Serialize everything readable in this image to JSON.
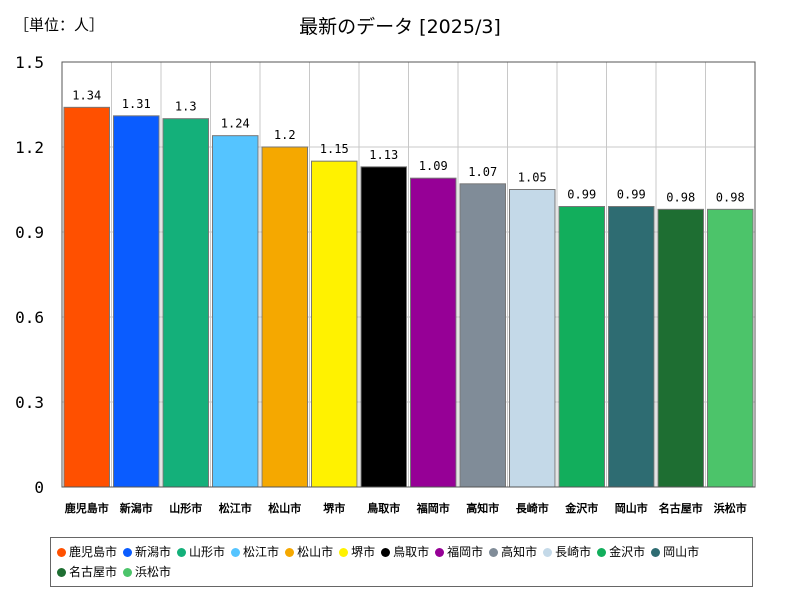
{
  "chart_data": {
    "type": "bar",
    "title": "最新のデータ [2025/3]",
    "unit_label": "［単位：人］",
    "ylim": [
      0,
      1.5
    ],
    "yticks": [
      "0",
      "0.3",
      "0.6",
      "0.9",
      "1.2",
      "1.5"
    ],
    "grid": true,
    "legend": "bottom",
    "categories": [
      "鹿児島市",
      "新潟市",
      "山形市",
      "松江市",
      "松山市",
      "堺市",
      "鳥取市",
      "福岡市",
      "高知市",
      "長崎市",
      "金沢市",
      "岡山市",
      "名古屋市",
      "浜松市"
    ],
    "values": [
      1.34,
      1.31,
      1.3,
      1.24,
      1.2,
      1.15,
      1.13,
      1.09,
      1.07,
      1.05,
      0.99,
      0.99,
      0.98,
      0.98
    ],
    "value_labels": [
      "1.34",
      "1.31",
      "1.3",
      "1.24",
      "1.2",
      "1.15",
      "1.13",
      "1.09",
      "1.07",
      "1.05",
      "0.99",
      "0.99",
      "0.98",
      "0.98"
    ],
    "colors": [
      "#ff5000",
      "#0a5cff",
      "#14b07a",
      "#55c4ff",
      "#f5a800",
      "#fff200",
      "#000000",
      "#960096",
      "#808c98",
      "#c4d9e8",
      "#12ae5c",
      "#2e6c72",
      "#1e6e32",
      "#4cc46a"
    ]
  }
}
